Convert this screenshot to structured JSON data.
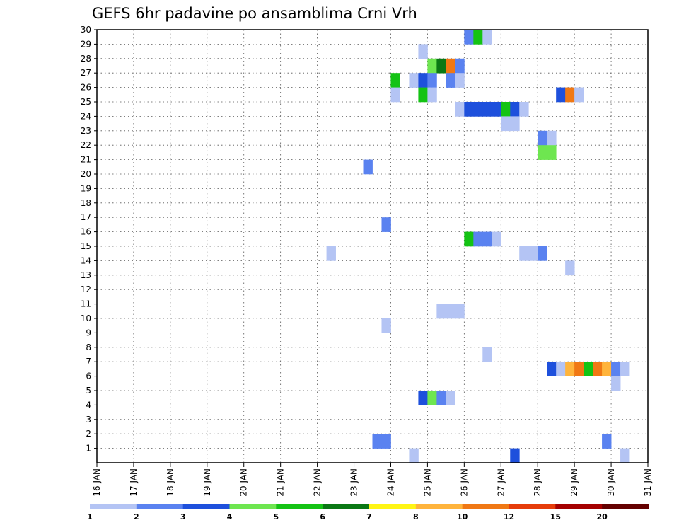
{
  "chart_data": {
    "type": "heatmap",
    "title": "GEFS 6hr padavine po ansamblima Crni Vrh",
    "x_ticks": [
      "16 JAN",
      "17 JAN",
      "18 JAN",
      "19 JAN",
      "20 JAN",
      "21 JAN",
      "22 JAN",
      "23 JAN",
      "24 JAN",
      "25 JAN",
      "26 JAN",
      "27 JAN",
      "28 JAN",
      "29 JAN",
      "30 JAN",
      "31 JAN"
    ],
    "x_unit": "days from 16 JAN, 6-hour steps",
    "xlim": [
      0,
      15
    ],
    "y_ticks": [
      "1",
      "2",
      "3",
      "4",
      "5",
      "6",
      "7",
      "8",
      "9",
      "10",
      "11",
      "12",
      "13",
      "14",
      "15",
      "16",
      "17",
      "18",
      "19",
      "20",
      "21",
      "22",
      "23",
      "24",
      "25",
      "26",
      "27",
      "28",
      "29",
      "30"
    ],
    "ylim": [
      0,
      30
    ],
    "grid": true,
    "color_levels": [
      {
        "label": "1",
        "color": "#b4c4f4"
      },
      {
        "label": "2",
        "color": "#5a82f0"
      },
      {
        "label": "3",
        "color": "#1e50dc"
      },
      {
        "label": "4",
        "color": "#6ee650"
      },
      {
        "label": "5",
        "color": "#14c314"
      },
      {
        "label": "6",
        "color": "#0a7814"
      },
      {
        "label": "7",
        "color": "#fff514"
      },
      {
        "label": "8",
        "color": "#ffb43c"
      },
      {
        "label": "10",
        "color": "#f07814"
      },
      {
        "label": "12",
        "color": "#e63c0a"
      },
      {
        "label": "15",
        "color": "#a50000"
      },
      {
        "label": "20",
        "color": "#640000"
      }
    ],
    "cells": [
      {
        "x": 10.0,
        "member": 30,
        "level": 1
      },
      {
        "x": 10.25,
        "member": 30,
        "level": 4
      },
      {
        "x": 10.5,
        "member": 30,
        "level": 0
      },
      {
        "x": 8.75,
        "member": 29,
        "level": 0
      },
      {
        "x": 9.0,
        "member": 28,
        "level": 3
      },
      {
        "x": 9.25,
        "member": 28,
        "level": 5
      },
      {
        "x": 9.5,
        "member": 28,
        "level": 8
      },
      {
        "x": 9.75,
        "member": 28,
        "level": 1
      },
      {
        "x": 8.0,
        "member": 27,
        "level": 4
      },
      {
        "x": 8.5,
        "member": 27,
        "level": 0
      },
      {
        "x": 8.75,
        "member": 27,
        "level": 2
      },
      {
        "x": 9.0,
        "member": 27,
        "level": 1
      },
      {
        "x": 9.5,
        "member": 27,
        "level": 1
      },
      {
        "x": 9.75,
        "member": 27,
        "level": 0
      },
      {
        "x": 8.0,
        "member": 26,
        "level": 0
      },
      {
        "x": 8.75,
        "member": 26,
        "level": 4
      },
      {
        "x": 9.0,
        "member": 26,
        "level": 0
      },
      {
        "x": 12.5,
        "member": 26,
        "level": 2
      },
      {
        "x": 12.75,
        "member": 26,
        "level": 8
      },
      {
        "x": 13.0,
        "member": 26,
        "level": 0
      },
      {
        "x": 9.75,
        "member": 25,
        "level": 0
      },
      {
        "x": 10.0,
        "member": 25,
        "level": 2
      },
      {
        "x": 10.25,
        "member": 25,
        "level": 2
      },
      {
        "x": 10.5,
        "member": 25,
        "level": 2
      },
      {
        "x": 10.75,
        "member": 25,
        "level": 2
      },
      {
        "x": 11.0,
        "member": 25,
        "level": 4
      },
      {
        "x": 11.25,
        "member": 25,
        "level": 2
      },
      {
        "x": 11.5,
        "member": 25,
        "level": 0
      },
      {
        "x": 11.0,
        "member": 24,
        "level": 0
      },
      {
        "x": 11.25,
        "member": 24,
        "level": 0
      },
      {
        "x": 12.0,
        "member": 23,
        "level": 1
      },
      {
        "x": 12.25,
        "member": 23,
        "level": 0
      },
      {
        "x": 12.0,
        "member": 22,
        "level": 3
      },
      {
        "x": 12.25,
        "member": 22,
        "level": 3
      },
      {
        "x": 7.25,
        "member": 21,
        "level": 1
      },
      {
        "x": 7.75,
        "member": 17,
        "level": 1
      },
      {
        "x": 10.0,
        "member": 16,
        "level": 4
      },
      {
        "x": 10.25,
        "member": 16,
        "level": 1
      },
      {
        "x": 10.5,
        "member": 16,
        "level": 1
      },
      {
        "x": 10.75,
        "member": 16,
        "level": 0
      },
      {
        "x": 6.25,
        "member": 15,
        "level": 0
      },
      {
        "x": 11.5,
        "member": 15,
        "level": 0
      },
      {
        "x": 11.75,
        "member": 15,
        "level": 0
      },
      {
        "x": 12.0,
        "member": 15,
        "level": 1
      },
      {
        "x": 12.75,
        "member": 14,
        "level": 0
      },
      {
        "x": 9.25,
        "member": 11,
        "level": 0
      },
      {
        "x": 9.5,
        "member": 11,
        "level": 0
      },
      {
        "x": 9.75,
        "member": 11,
        "level": 0
      },
      {
        "x": 7.75,
        "member": 10,
        "level": 0
      },
      {
        "x": 10.5,
        "member": 8,
        "level": 0
      },
      {
        "x": 12.25,
        "member": 7,
        "level": 2
      },
      {
        "x": 12.5,
        "member": 7,
        "level": 0
      },
      {
        "x": 12.75,
        "member": 7,
        "level": 7
      },
      {
        "x": 13.0,
        "member": 7,
        "level": 8
      },
      {
        "x": 13.25,
        "member": 7,
        "level": 4
      },
      {
        "x": 13.5,
        "member": 7,
        "level": 8
      },
      {
        "x": 13.75,
        "member": 7,
        "level": 7
      },
      {
        "x": 14.0,
        "member": 7,
        "level": 1
      },
      {
        "x": 14.25,
        "member": 7,
        "level": 0
      },
      {
        "x": 14.0,
        "member": 6,
        "level": 0
      },
      {
        "x": 8.75,
        "member": 5,
        "level": 2
      },
      {
        "x": 9.0,
        "member": 5,
        "level": 3
      },
      {
        "x": 9.25,
        "member": 5,
        "level": 1
      },
      {
        "x": 9.5,
        "member": 5,
        "level": 0
      },
      {
        "x": 7.5,
        "member": 2,
        "level": 1
      },
      {
        "x": 7.75,
        "member": 2,
        "level": 1
      },
      {
        "x": 13.75,
        "member": 2,
        "level": 1
      },
      {
        "x": 8.5,
        "member": 1,
        "level": 0
      },
      {
        "x": 11.25,
        "member": 1,
        "level": 2
      },
      {
        "x": 14.25,
        "member": 1,
        "level": 0
      }
    ]
  }
}
